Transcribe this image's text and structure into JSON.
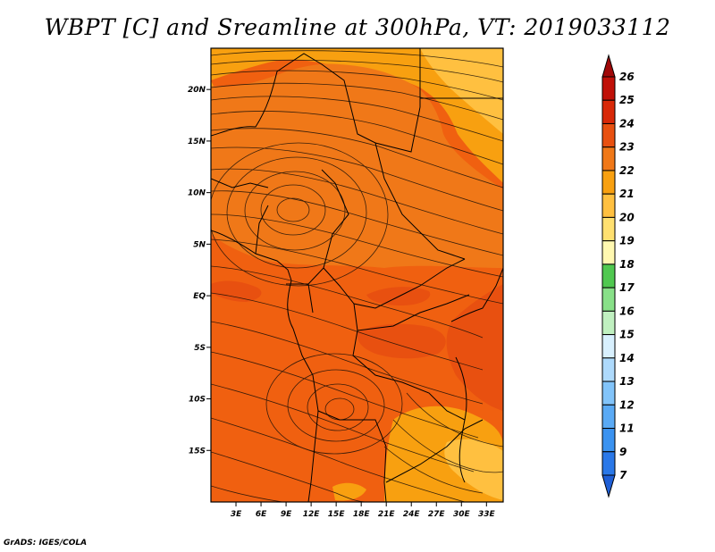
{
  "title": "WBPT [C] and Sreamline at 300hPa, VT: 2019033112",
  "credit": "GrADS: IGES/COLA",
  "map": {
    "lon_range": [
      0,
      35
    ],
    "lat_range": [
      -20,
      24
    ],
    "lon_ticks": [
      "3E",
      "6E",
      "9E",
      "12E",
      "15E",
      "18E",
      "21E",
      "24E",
      "27E",
      "30E",
      "33E"
    ],
    "lat_ticks": [
      "20N",
      "15N",
      "10N",
      "5N",
      "EQ",
      "5S",
      "10S",
      "15S"
    ],
    "background_field_color": "#f06010"
  },
  "colorbar": {
    "levels": [
      "7",
      "9",
      "11",
      "12",
      "13",
      "14",
      "15",
      "16",
      "17",
      "18",
      "19",
      "20",
      "21",
      "22",
      "23",
      "24",
      "25",
      "26"
    ],
    "colors": [
      "#1f5fd6",
      "#2a78e8",
      "#3a92f0",
      "#5aaaf5",
      "#82c4fa",
      "#aedafc",
      "#d8f0fe",
      "#c0f0c0",
      "#88e088",
      "#50c850",
      "#fff8b0",
      "#ffe070",
      "#ffc040",
      "#f8a010",
      "#f07818",
      "#e85010",
      "#d82808",
      "#c01008",
      "#a00808"
    ]
  }
}
